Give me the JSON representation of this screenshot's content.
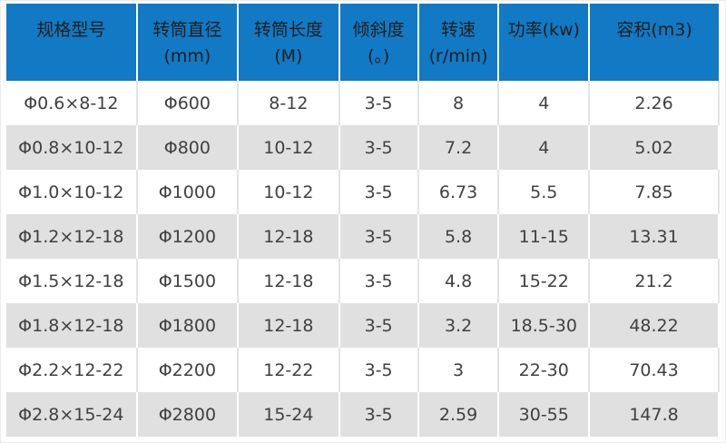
{
  "table": {
    "colors": {
      "header_bg": "#1279c4",
      "header_text": "#1f1f1f",
      "row_alt_bg": "#e0e0e0",
      "cell_text": "#404040"
    },
    "columns": [
      {
        "label": "规格型号",
        "unit": ""
      },
      {
        "label": "转筒直径",
        "unit": "(mm)"
      },
      {
        "label": "转筒长度",
        "unit": "(M)"
      },
      {
        "label": "倾斜度",
        "unit": "(。)"
      },
      {
        "label": "转速",
        "unit": "(r/min)"
      },
      {
        "label": "功率(kw)",
        "unit": ""
      },
      {
        "label": "容积(m3)",
        "unit": ""
      }
    ],
    "rows": [
      [
        "Φ0.6×8-12",
        "Φ600",
        "8-12",
        "3-5",
        "8",
        "4",
        "2.26"
      ],
      [
        "Φ0.8×10-12",
        "Φ800",
        "10-12",
        "3-5",
        "7.2",
        "4",
        "5.02"
      ],
      [
        "Φ1.0×10-12",
        "Φ1000",
        "10-12",
        "3-5",
        "6.73",
        "5.5",
        "7.85"
      ],
      [
        "Φ1.2×12-18",
        "Φ1200",
        "12-18",
        "3-5",
        "5.8",
        "11-15",
        "13.31"
      ],
      [
        "Φ1.5×12-18",
        "Φ1500",
        "12-18",
        "3-5",
        "4.8",
        "15-22",
        "21.2"
      ],
      [
        "Φ1.8×12-18",
        "Φ1800",
        "12-18",
        "3-5",
        "3.2",
        "18.5-30",
        "48.22"
      ],
      [
        "Φ2.2×12-22",
        "Φ2200",
        "12-22",
        "3-5",
        "3",
        "22-30",
        "70.43"
      ],
      [
        "Φ2.8×15-24",
        "Φ2800",
        "15-24",
        "3-5",
        "2.59",
        "30-55",
        "147.8"
      ]
    ]
  }
}
